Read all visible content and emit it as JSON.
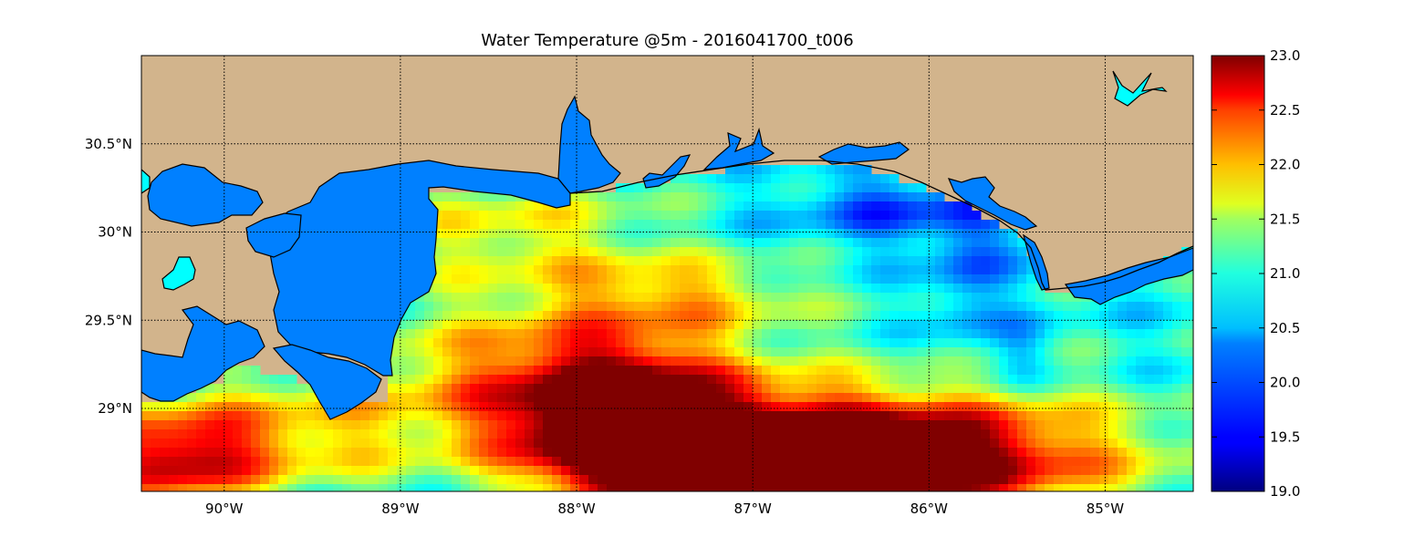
{
  "title": "Water Temperature @5m - 2016041700_t006",
  "map": {
    "x_ticks": [
      "90°W",
      "89°W",
      "88°W",
      "87°W",
      "86°W",
      "85°W"
    ],
    "y_ticks": [
      "30.5°N",
      "30°N",
      "29.5°N",
      "29°N"
    ],
    "lon_values": [
      -90,
      -89,
      -88,
      -87,
      -86,
      -85
    ],
    "lat_values": [
      30.5,
      30.0,
      29.5,
      29.0
    ],
    "extent": {
      "lon_min": -90.47,
      "lon_max": -84.5,
      "lat_min": 28.53,
      "lat_max": 31.0
    },
    "land_color": "#d2b48c",
    "water_color": "#0080ff",
    "lake_color": "#00ffff",
    "grid": true
  },
  "colorbar": {
    "labels": [
      "23.0",
      "22.5",
      "22.0",
      "21.5",
      "21.0",
      "20.5",
      "20.0",
      "19.5",
      "19.0"
    ],
    "values": [
      23.0,
      22.5,
      22.0,
      21.5,
      21.0,
      20.5,
      20.0,
      19.5,
      19.0
    ],
    "vmin": 19.0,
    "vmax": 23.0,
    "colormap": "jet"
  }
}
